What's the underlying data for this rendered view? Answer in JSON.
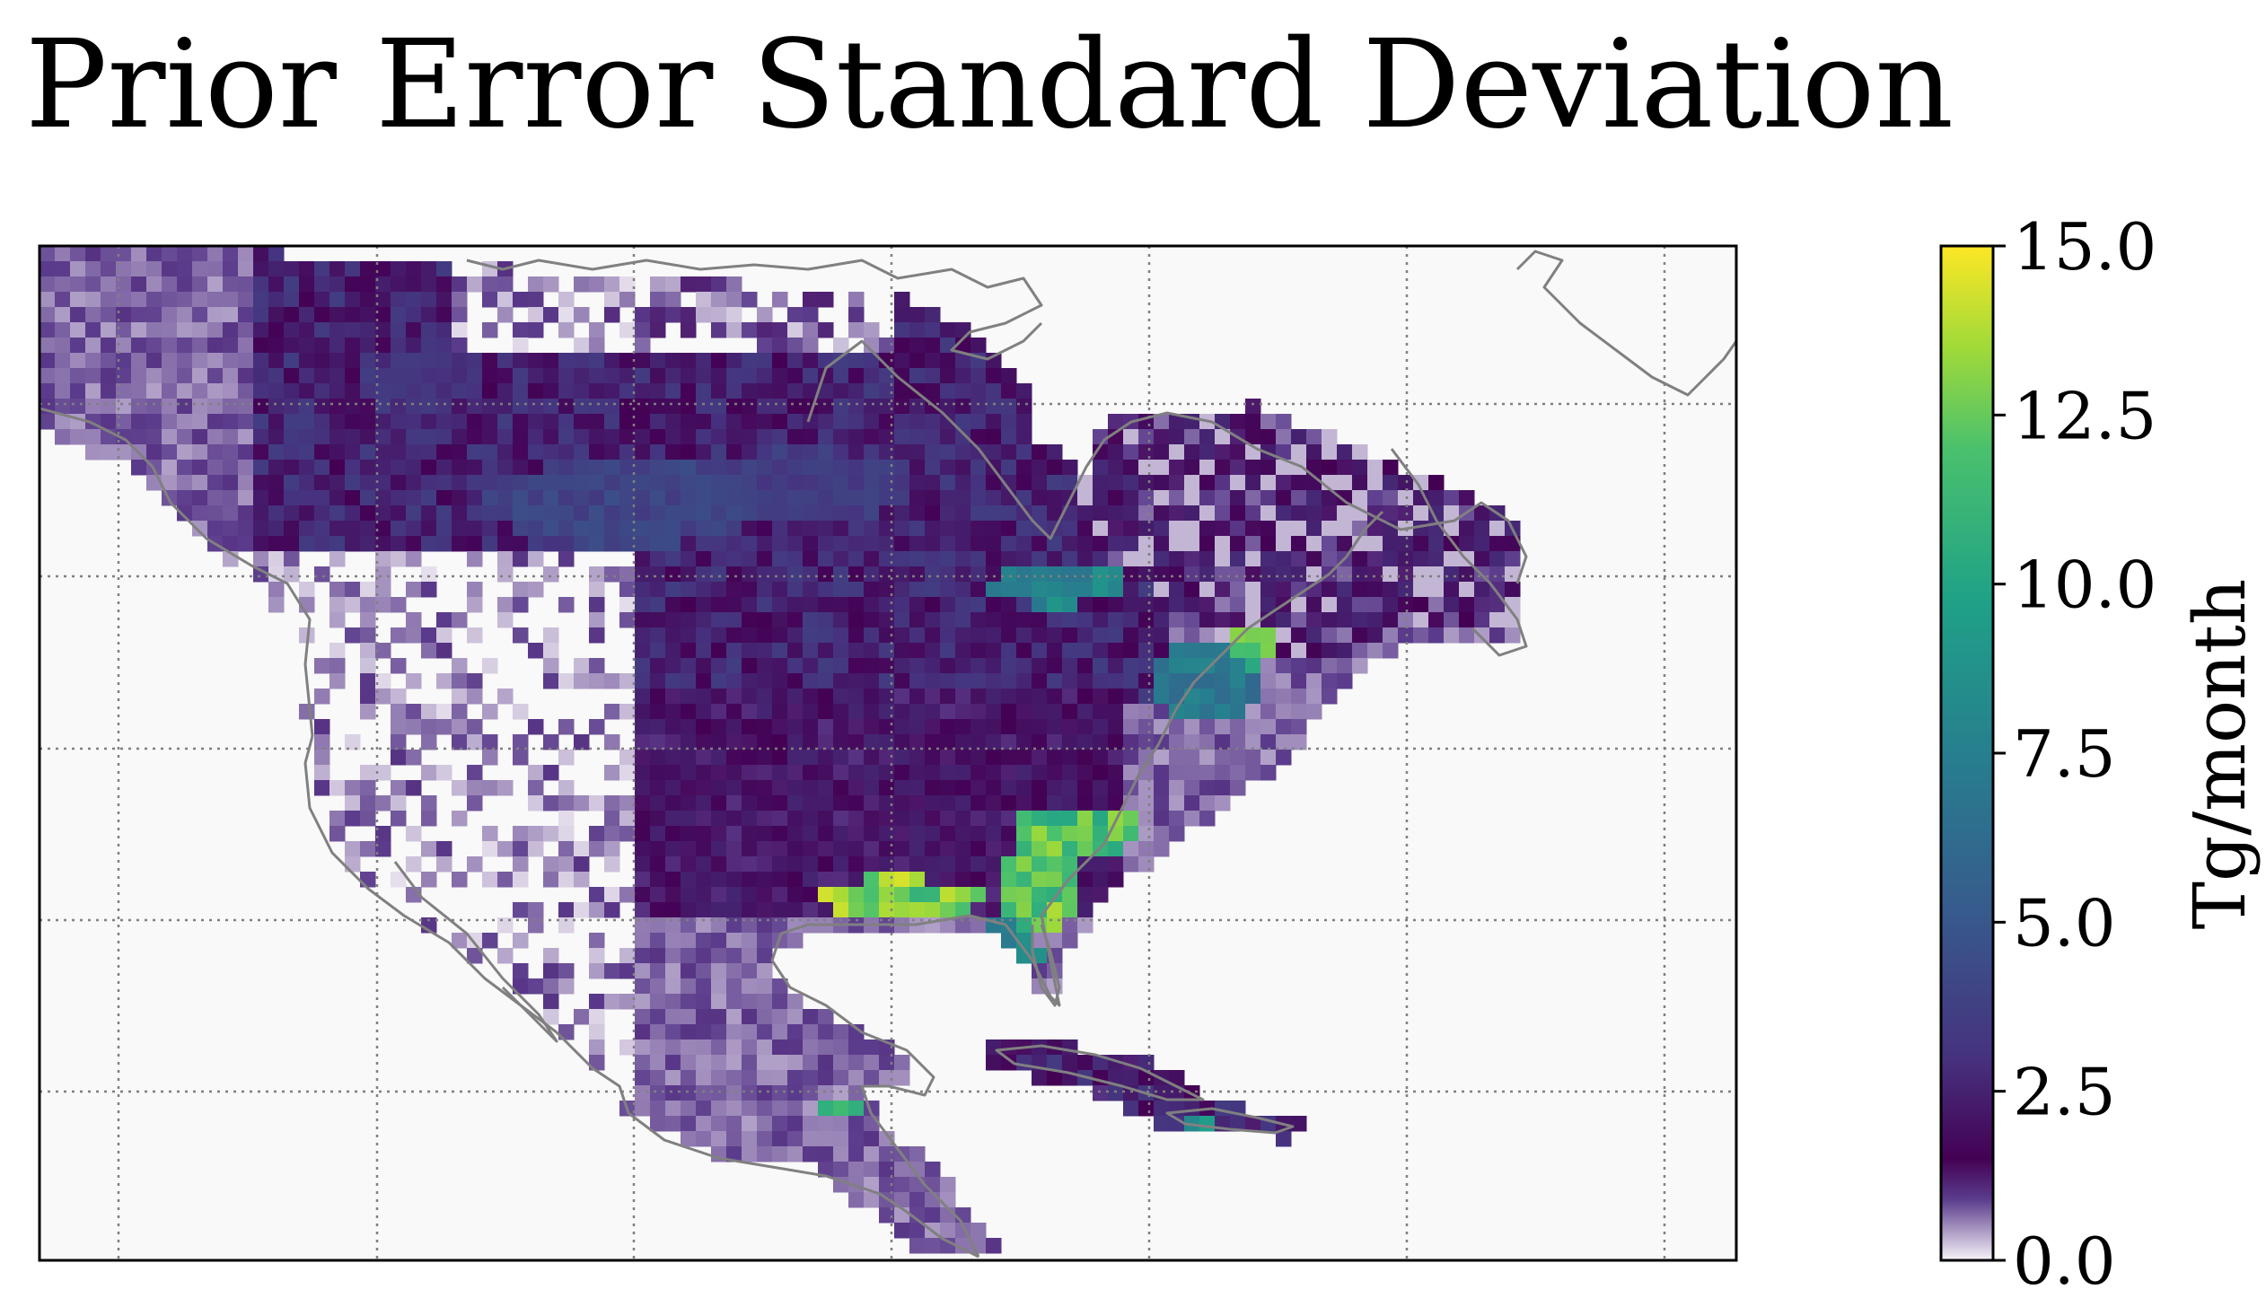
{
  "chart_data": {
    "type": "heatmap",
    "title": "Prior Error Standard Deviation",
    "colorbar": {
      "label": "Tg/month",
      "range": [
        0,
        15
      ],
      "ticks": [
        "0.0",
        "2.5",
        "5.0",
        "7.5",
        "10.0",
        "12.5",
        "15.0"
      ],
      "colormap": "white-purple-viridis"
    },
    "grid": true,
    "colors": {
      "background": "#f9f9f9",
      "coastline": "#808080",
      "gridline": "#808080",
      "frame": "#000000"
    },
    "regions": [
      {
        "name": "boreal Canada / Alaska",
        "approx_value": 2.0
      },
      {
        "name": "central Canada",
        "approx_value": 4.5
      },
      {
        "name": "Hudson Bay lowlands",
        "approx_value": 8.5
      },
      {
        "name": "US Midwest",
        "approx_value": 1.5
      },
      {
        "name": "Gulf Coast / Louisiana",
        "approx_value": 14.5
      },
      {
        "name": "Southeast US Atlantic coast",
        "approx_value": 13.5
      },
      {
        "name": "Florida",
        "approx_value": 9.0
      },
      {
        "name": "New England",
        "approx_value": 8.0
      },
      {
        "name": "Western US",
        "approx_value": 0.4
      },
      {
        "name": "Mexico",
        "approx_value": 0.6
      },
      {
        "name": "Central America",
        "approx_value": 2.5
      },
      {
        "name": "Cuba / Caribbean",
        "approx_value": 2.0
      }
    ]
  }
}
